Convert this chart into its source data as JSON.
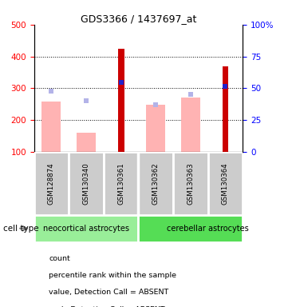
{
  "title": "GDS3366 / 1437697_at",
  "samples": [
    "GSM128874",
    "GSM130340",
    "GSM130361",
    "GSM130362",
    "GSM130363",
    "GSM130364"
  ],
  "groups": [
    {
      "name": "neocortical astrocytes",
      "count": 3
    },
    {
      "name": "cerebellar astrocytes",
      "count": 3
    }
  ],
  "count_values": [
    null,
    null,
    425,
    null,
    null,
    370
  ],
  "count_color": "#cc0000",
  "percentile_values": [
    null,
    null,
    318,
    null,
    null,
    305
  ],
  "percentile_color": "#2222cc",
  "value_absent": [
    258,
    160,
    null,
    248,
    272,
    null
  ],
  "value_absent_color": "#ffb3b3",
  "rank_absent": [
    290,
    260,
    null,
    248,
    282,
    null
  ],
  "rank_absent_color": "#b3b3e8",
  "ylim_left": [
    100,
    500
  ],
  "ylim_right": [
    0,
    100
  ],
  "yticks_left": [
    100,
    200,
    300,
    400,
    500
  ],
  "yticks_right": [
    0,
    25,
    50,
    75,
    100
  ],
  "ytick_labels_right": [
    "0",
    "25",
    "50",
    "75",
    "100%"
  ],
  "base": 100,
  "bg_color": "#ffffff",
  "sample_box_color": "#cccccc",
  "group_color_1": "#99ee99",
  "group_color_2": "#55dd55",
  "legend_items": [
    {
      "label": "count",
      "color": "#cc0000"
    },
    {
      "label": "percentile rank within the sample",
      "color": "#2222cc"
    },
    {
      "label": "value, Detection Call = ABSENT",
      "color": "#ffb3b3"
    },
    {
      "label": "rank, Detection Call = ABSENT",
      "color": "#b3b3e8"
    }
  ],
  "cell_type_label": "cell type"
}
